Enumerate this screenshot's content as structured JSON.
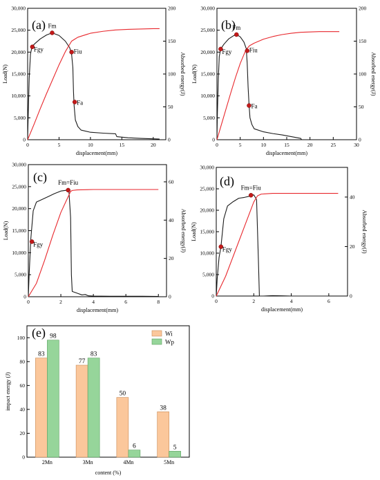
{
  "colors": {
    "load": "#1a1a1a",
    "energy": "#e8262b",
    "marker_fill": "#c21a1a",
    "bar_wi": "#fbc79b",
    "bar_wp": "#96d59a",
    "axis": "#000000"
  },
  "chart_data": [
    {
      "panel": "(a)",
      "type": "line",
      "xlabel": "displacement(mm)",
      "ylabel_left": "Load(N)",
      "ylabel_right": "Absorbed energy(J)",
      "xlim": [
        0,
        22
      ],
      "ylim_left": [
        0,
        30000
      ],
      "ylim_right": [
        0,
        200
      ],
      "xticks": [
        "0",
        "5",
        "10",
        "15",
        "20"
      ],
      "yticks_left": [
        "0",
        "5,000",
        "10,000",
        "15,000",
        "20,000",
        "25,000",
        "30,000"
      ],
      "yticks_right": [
        "0",
        "50",
        "100",
        "150",
        "200"
      ],
      "series": [
        {
          "axis": "left",
          "x": [
            0,
            0.1,
            0.25,
            0.45,
            0.7,
            1.2,
            2.0,
            3.0,
            3.9,
            5.0,
            6.0,
            6.7,
            7.0,
            7.2,
            7.3,
            7.4,
            7.6,
            8.0,
            8.5,
            10,
            12,
            14,
            14.2,
            16,
            18,
            20,
            21
          ],
          "y": [
            0,
            6000,
            14000,
            19500,
            21300,
            22000,
            23000,
            23900,
            24400,
            23800,
            22500,
            21000,
            19500,
            16500,
            11000,
            7800,
            4500,
            3000,
            2200,
            1700,
            1500,
            1350,
            700,
            450,
            300,
            200,
            150
          ]
        },
        {
          "axis": "right",
          "x": [
            0,
            1,
            2,
            3,
            4,
            5,
            6,
            7,
            7.5,
            8,
            9,
            10,
            12,
            14,
            16,
            18,
            20,
            21
          ],
          "y": [
            0,
            23,
            47,
            70,
            92,
            114,
            134,
            150,
            153,
            156,
            159,
            162,
            165,
            167,
            168,
            168.5,
            169,
            169
          ]
        }
      ],
      "points": [
        {
          "label": "Fgy",
          "x": 0.75,
          "y": 21200
        },
        {
          "label": "Fm",
          "x": 3.9,
          "y": 24400
        },
        {
          "label": "Fiu",
          "x": 7.0,
          "y": 20000
        },
        {
          "label": "Fa",
          "x": 7.5,
          "y": 8600
        }
      ]
    },
    {
      "panel": "(b)",
      "type": "line",
      "xlabel": "displacement(mm)",
      "ylabel_left": "Load(N)",
      "ylabel_right": "Absorbed energy(J)",
      "xlim": [
        0,
        30
      ],
      "ylim_left": [
        0,
        30000
      ],
      "ylim_right": [
        0,
        200
      ],
      "xticks": [
        "0",
        "5",
        "10",
        "15",
        "20",
        "25",
        "30"
      ],
      "yticks_left": [
        "0",
        "5,000",
        "10,000",
        "15,000",
        "20,000",
        "25,000",
        "30,000"
      ],
      "yticks_right": [
        "0",
        "50",
        "100",
        "150",
        "200"
      ],
      "series": [
        {
          "axis": "left",
          "x": [
            0,
            0.1,
            0.3,
            0.5,
            0.8,
            1.5,
            2.5,
            3.5,
            4.2,
            5.0,
            5.8,
            6.3,
            6.5,
            6.7,
            6.9,
            7.1,
            7.5,
            8,
            10,
            12,
            14,
            16,
            17,
            18,
            18.2
          ],
          "y": [
            0,
            6000,
            14000,
            19000,
            20700,
            21800,
            23000,
            23700,
            24000,
            23500,
            22300,
            20800,
            17500,
            12000,
            8000,
            5000,
            3500,
            2500,
            1800,
            1400,
            1100,
            700,
            500,
            300,
            0
          ]
        },
        {
          "axis": "right",
          "x": [
            0,
            1,
            2,
            3,
            4,
            5,
            6,
            6.5,
            7,
            8,
            10,
            12,
            14,
            16,
            18,
            20,
            22,
            24,
            26.3
          ],
          "y": [
            0,
            24,
            48,
            72,
            95,
            116,
            133,
            139,
            143,
            147,
            153,
            157,
            160,
            162,
            163.5,
            164,
            164.5,
            164.5,
            164.5
          ]
        }
      ],
      "points": [
        {
          "label": "Fgy",
          "x": 0.8,
          "y": 20700
        },
        {
          "label": "Fm",
          "x": 4.2,
          "y": 24000
        },
        {
          "label": "Fiu",
          "x": 6.5,
          "y": 20300
        },
        {
          "label": "Fa",
          "x": 6.9,
          "y": 7800
        }
      ]
    },
    {
      "panel": "(c)",
      "type": "line",
      "xlabel": "displacement(mm)",
      "ylabel_left": "Load(N)",
      "ylabel_right": "Absorbed energy(J)",
      "xlim": [
        0,
        8.5
      ],
      "ylim_left": [
        0,
        30000
      ],
      "ylim_right": [
        0,
        69
      ],
      "xticks": [
        "0",
        "2",
        "4",
        "6",
        "8"
      ],
      "yticks_left": [
        "0",
        "5,000",
        "10,000",
        "15,000",
        "20,000",
        "25,000",
        "30,000"
      ],
      "yticks_right": [
        "0",
        "20",
        "40",
        "60"
      ],
      "series": [
        {
          "axis": "left",
          "x": [
            0,
            0.05,
            0.15,
            0.3,
            0.5,
            0.8,
            1.2,
            1.6,
            2.0,
            2.4,
            2.5,
            2.6,
            2.65,
            2.7,
            3.0,
            3.3,
            3.5,
            3.7,
            4.0,
            5,
            6,
            7,
            8
          ],
          "y": [
            0,
            5000,
            13000,
            19500,
            21500,
            22000,
            22700,
            23400,
            24000,
            24200,
            23800,
            18000,
            5000,
            1200,
            800,
            400,
            500,
            200,
            150,
            120,
            100,
            100,
            80
          ]
        },
        {
          "axis": "right",
          "x": [
            0,
            0.5,
            1.0,
            1.5,
            2.0,
            2.6,
            2.7,
            3.0,
            4,
            5,
            6,
            7,
            8
          ],
          "y": [
            0,
            7,
            19,
            32,
            44,
            55,
            55.5,
            55.8,
            56,
            56,
            56,
            56,
            56
          ]
        }
      ],
      "points": [
        {
          "label": "Fgy",
          "x": 0.22,
          "y": 12500
        },
        {
          "label": "Fm=Fiu",
          "x": 2.45,
          "y": 24200
        }
      ]
    },
    {
      "panel": "(d)",
      "type": "line",
      "xlabel": "displacement(mm)",
      "ylabel_left": "Load(N)",
      "ylabel_right": "Absorbed energy(J)",
      "xlim": [
        0,
        7
      ],
      "ylim_left": [
        0,
        30000
      ],
      "ylim_right": [
        0,
        52
      ],
      "xticks": [
        "0",
        "2",
        "4",
        "6"
      ],
      "yticks_left": [
        "0",
        "5,000",
        "10,000",
        "15,000",
        "20,000",
        "25,000",
        "30,000"
      ],
      "yticks_right": [
        "0",
        "20",
        "40"
      ],
      "series": [
        {
          "axis": "left",
          "x": [
            0,
            0.05,
            0.15,
            0.25,
            0.4,
            0.6,
            0.9,
            1.2,
            1.5,
            1.8,
            2.0,
            2.15,
            2.25,
            2.3,
            2.35,
            2.5,
            3,
            3.5,
            4,
            5,
            6
          ],
          "y": [
            0,
            4000,
            9000,
            11500,
            18000,
            21000,
            22000,
            22800,
            23000,
            23300,
            23600,
            22500,
            8000,
            0,
            0,
            0,
            100,
            50,
            0,
            0,
            0
          ]
        },
        {
          "axis": "right",
          "x": [
            0,
            0.5,
            1.0,
            1.5,
            2.0,
            2.2,
            2.4,
            3,
            4,
            5,
            6.5
          ],
          "y": [
            0,
            8,
            18,
            28,
            38,
            40.5,
            41.2,
            41.5,
            41.5,
            41.5,
            41.5
          ]
        }
      ],
      "points": [
        {
          "label": "Fgy",
          "x": 0.25,
          "y": 11500
        },
        {
          "label": "Fm=Fiu",
          "x": 1.85,
          "y": 23500
        }
      ]
    },
    {
      "panel": "(e)",
      "type": "bar",
      "xlabel": "content (%)",
      "ylabel": "impact energy (J)",
      "categories": [
        "2Mn",
        "3Mn",
        "4Mn",
        "5Mn"
      ],
      "ylim": [
        0,
        110
      ],
      "yticks": [
        "0",
        "20",
        "40",
        "60",
        "80",
        "100"
      ],
      "series": [
        {
          "name": "Wi",
          "values": [
            83,
            77,
            50,
            38
          ],
          "labels": [
            "83",
            "77",
            "50",
            "38"
          ]
        },
        {
          "name": "Wp",
          "values": [
            98,
            83,
            6,
            5
          ],
          "labels": [
            "98",
            "83",
            "6",
            "5"
          ]
        }
      ]
    }
  ]
}
